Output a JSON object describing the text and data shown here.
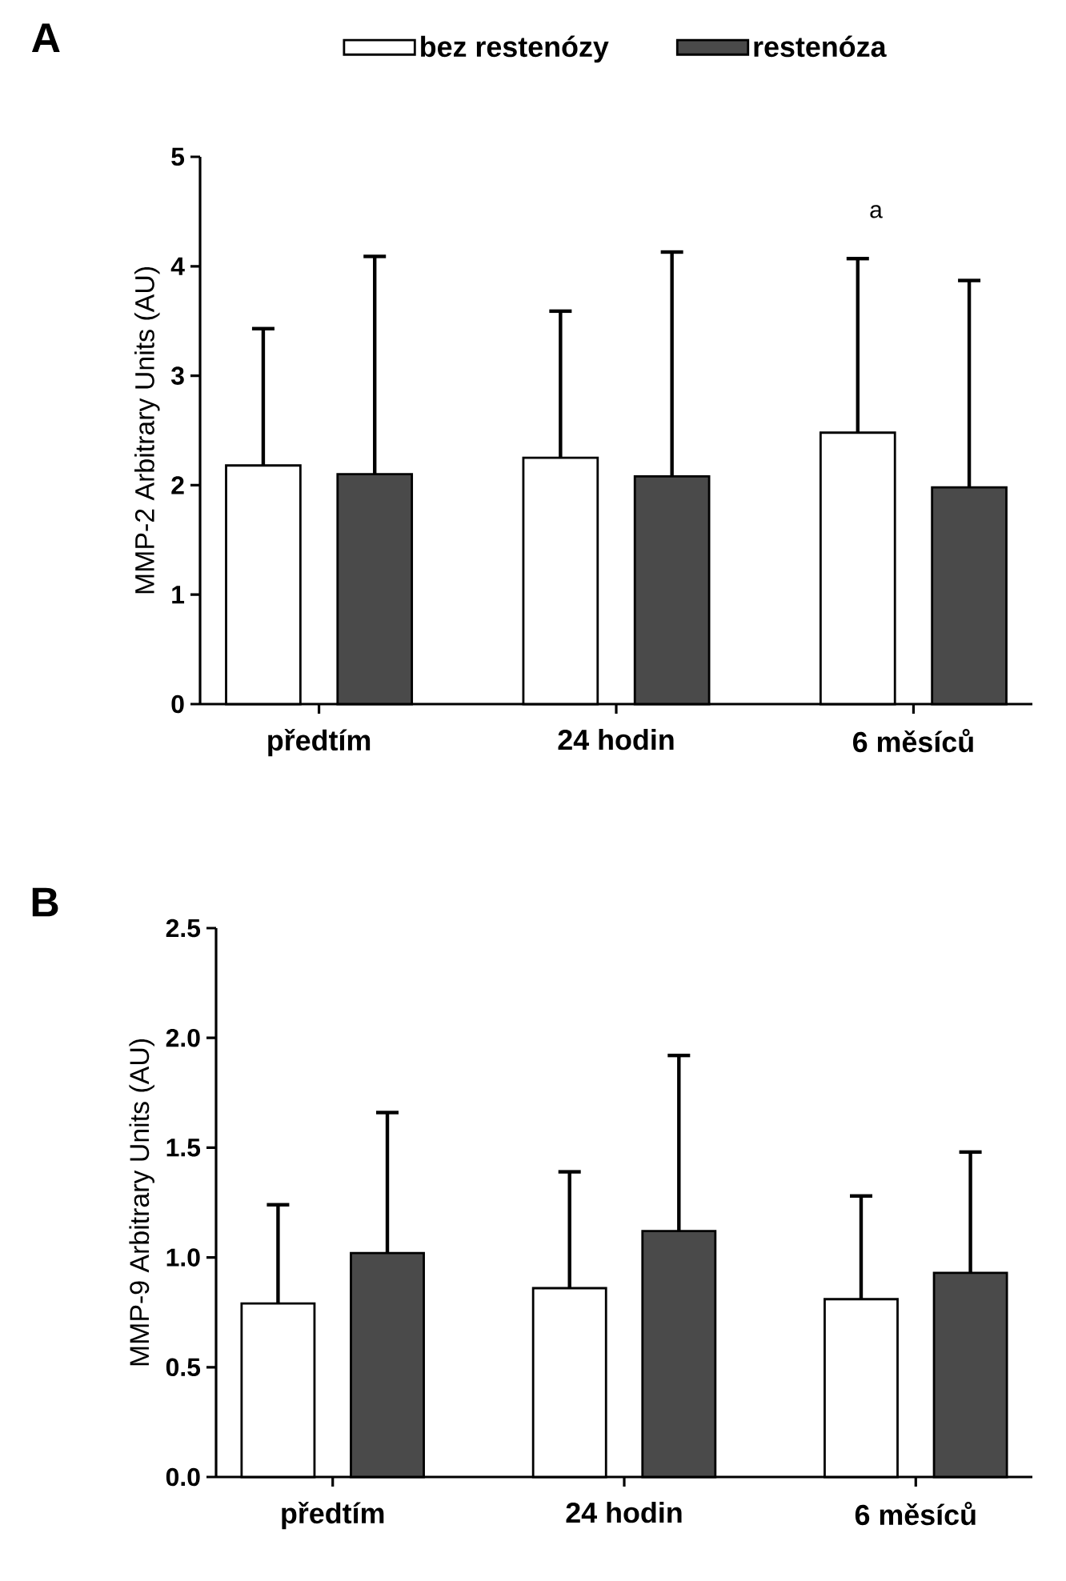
{
  "chart_data": [
    {
      "type": "bar",
      "title": "A",
      "ylabel": "MMP-2 Arbitrary Units (AU)",
      "categories": [
        "předtím",
        "24 hodin",
        "6 měsíců"
      ],
      "series": [
        {
          "name": "bez restenózy",
          "color": "#ffffff",
          "values": [
            2.18,
            2.25,
            2.48
          ],
          "errors": [
            [
              2.18,
              3.43
            ],
            [
              2.25,
              3.59
            ],
            [
              2.48,
              4.07
            ]
          ]
        },
        {
          "name": "restenóza",
          "color": "#4a4a4a",
          "values": [
            2.1,
            2.08,
            1.98
          ],
          "errors": [
            [
              2.1,
              4.09
            ],
            [
              2.08,
              4.13
            ],
            [
              1.98,
              3.87
            ]
          ]
        }
      ],
      "ylim": [
        0,
        5
      ],
      "yticks": [
        0,
        1,
        2,
        3,
        4,
        5
      ],
      "legend": "top",
      "annotations": [
        "a"
      ]
    },
    {
      "type": "bar",
      "title": "B",
      "ylabel": "MMP-9 Arbitrary Units (AU)",
      "categories": [
        "předtím",
        "24 hodin",
        "6 měsíců"
      ],
      "series": [
        {
          "color": "#ffffff",
          "values": [
            0.79,
            0.86,
            0.81
          ],
          "errors": [
            [
              0.79,
              1.24
            ],
            [
              0.86,
              1.39
            ],
            [
              0.81,
              1.28
            ]
          ]
        },
        {
          "color": "#4a4a4a",
          "values": [
            1.02,
            1.12,
            0.93
          ],
          "errors": [
            [
              1.02,
              1.66
            ],
            [
              1.12,
              1.92
            ],
            [
              0.93,
              1.48
            ]
          ]
        }
      ],
      "ylim": [
        0,
        2.5
      ],
      "yticks": [
        {
          "value": 0,
          "label": "0.0"
        },
        {
          "value": 0.5,
          "label": "0.5"
        },
        {
          "value": 1,
          "label": "1.0"
        },
        {
          "value": 1.5,
          "label": "1.5"
        },
        {
          "value": 2,
          "label": "2.0"
        },
        {
          "value": 2.5,
          "label": "2.5"
        }
      ]
    }
  ]
}
